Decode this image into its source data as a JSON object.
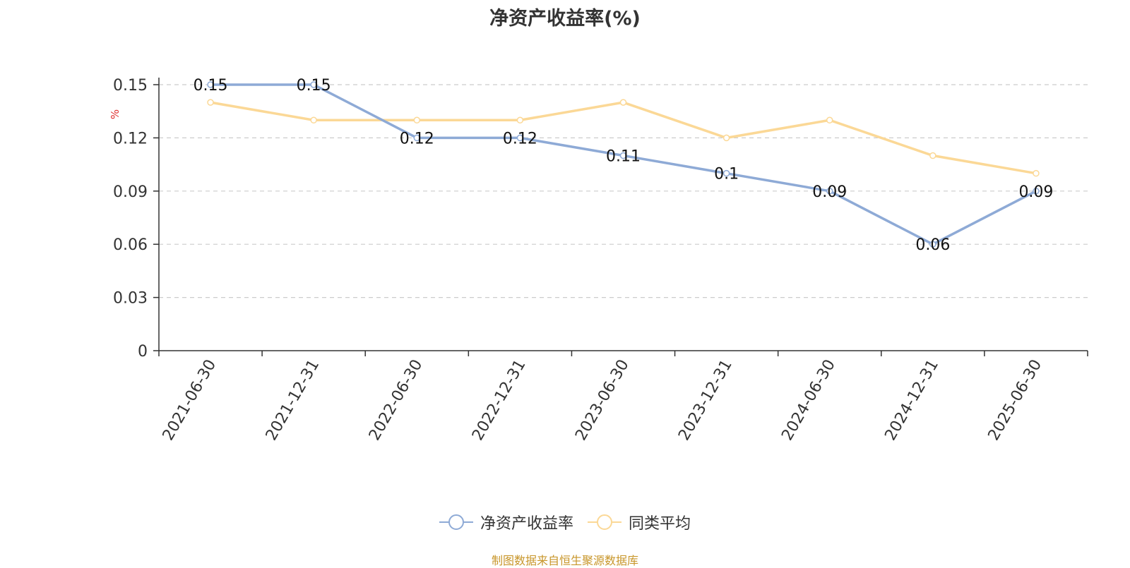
{
  "chart_data": {
    "type": "line",
    "title": "净资产收益率(%)",
    "ylabel": "%",
    "xlabel": "",
    "categories": [
      "2021-06-30",
      "2021-12-31",
      "2022-06-30",
      "2022-12-31",
      "2023-06-30",
      "2023-12-31",
      "2024-06-30",
      "2024-12-31",
      "2025-06-30"
    ],
    "ylim": [
      0,
      0.15
    ],
    "yticks": [
      "0",
      "0.03",
      "0.06",
      "0.09",
      "0.12",
      "0.15"
    ],
    "grid": true,
    "legend_position": "bottom",
    "series": [
      {
        "name": "净资产收益率",
        "color": "#8eaad6",
        "values": [
          0.15,
          0.15,
          0.12,
          0.12,
          0.11,
          0.1,
          0.09,
          0.06,
          0.09
        ],
        "labels": [
          "0.15",
          "0.15",
          "0.12",
          "0.12",
          "0.11",
          "0.1",
          "0.09",
          "0.06",
          "0.09"
        ]
      },
      {
        "name": "同类平均",
        "color": "#fbd896",
        "values": [
          0.14,
          0.13,
          0.13,
          0.13,
          0.14,
          0.12,
          0.13,
          0.11,
          0.1
        ]
      }
    ]
  },
  "source": "制图数据来自恒生聚源数据库"
}
